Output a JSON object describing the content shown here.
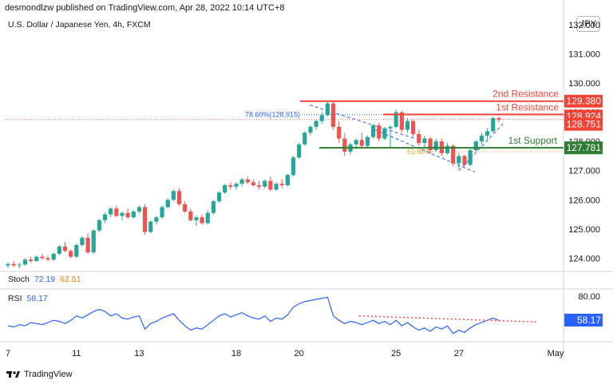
{
  "header": {
    "published": "desmondlzw published on TradingView.com, Apr 28, 2022 10:14 UTC+8",
    "symbol": "U.S. Dollar / Japanese Yen, 4h, FXCM",
    "currency": "JPY"
  },
  "levels": {
    "second_resistance": {
      "label": "2nd Resistance",
      "value": "129.380",
      "color": "#f44336"
    },
    "first_resistance": {
      "label": "1st Resistance",
      "value": "128.924",
      "color": "#f44336"
    },
    "current_price": {
      "value": "128.751",
      "color": "#f44336"
    },
    "first_support": {
      "label": "1st Support",
      "value": "127.781",
      "color": "#2e7d32"
    },
    "fib_label": "78.60%(128.915)",
    "fib_label_2": "61.80%"
  },
  "indicators": {
    "stoch": {
      "label": "Stoch",
      "k": "72.19",
      "d": "62.51"
    },
    "rsi": {
      "label": "RSI",
      "value": "58.17"
    }
  },
  "brand": "TradingView",
  "chart_data": {
    "type": "candlestick",
    "ylim": [
      123.6,
      132.3
    ],
    "yticks": [
      "132.000",
      "131.000",
      "130.000",
      "129.000",
      "128.000",
      "127.000",
      "126.000",
      "125.000",
      "124.000"
    ],
    "xticks": [
      "7",
      "11",
      "13",
      "18",
      "20",
      "25",
      "27",
      "May"
    ],
    "rsi_yticks": [
      "80.00"
    ],
    "candles": [
      [
        123.75,
        123.85,
        123.65,
        123.8
      ],
      [
        123.8,
        123.9,
        123.7,
        123.75
      ],
      [
        123.75,
        123.85,
        123.65,
        123.78
      ],
      [
        123.78,
        124.0,
        123.75,
        123.95
      ],
      [
        123.95,
        124.05,
        123.85,
        123.9
      ],
      [
        123.9,
        124.1,
        123.88,
        124.05
      ],
      [
        124.05,
        124.15,
        123.95,
        124.0
      ],
      [
        124.0,
        124.1,
        123.9,
        123.95
      ],
      [
        123.95,
        124.2,
        123.9,
        124.15
      ],
      [
        124.15,
        124.45,
        124.1,
        124.4
      ],
      [
        124.4,
        124.55,
        124.2,
        124.25
      ],
      [
        124.25,
        124.3,
        124.0,
        124.05
      ],
      [
        124.05,
        124.5,
        124.0,
        124.45
      ],
      [
        124.45,
        124.75,
        124.4,
        124.7
      ],
      [
        124.7,
        124.85,
        124.15,
        124.2
      ],
      [
        124.2,
        125.0,
        124.15,
        124.95
      ],
      [
        124.95,
        125.35,
        124.9,
        125.3
      ],
      [
        125.3,
        125.55,
        125.2,
        125.5
      ],
      [
        125.5,
        125.75,
        125.4,
        125.7
      ],
      [
        125.7,
        125.8,
        125.4,
        125.45
      ],
      [
        125.45,
        125.6,
        125.3,
        125.55
      ],
      [
        125.55,
        125.7,
        125.35,
        125.4
      ],
      [
        125.4,
        125.65,
        125.35,
        125.6
      ],
      [
        125.6,
        125.8,
        125.55,
        125.75
      ],
      [
        125.75,
        125.85,
        124.8,
        124.9
      ],
      [
        124.9,
        125.3,
        124.85,
        125.25
      ],
      [
        125.25,
        125.45,
        125.15,
        125.4
      ],
      [
        125.4,
        125.8,
        125.35,
        125.75
      ],
      [
        125.75,
        126.05,
        125.7,
        126.0
      ],
      [
        126.0,
        126.35,
        125.95,
        126.3
      ],
      [
        126.3,
        126.4,
        125.8,
        125.85
      ],
      [
        125.85,
        125.95,
        125.55,
        125.6
      ],
      [
        125.6,
        125.7,
        125.25,
        125.3
      ],
      [
        125.3,
        125.45,
        125.1,
        125.4
      ],
      [
        125.4,
        125.5,
        125.15,
        125.2
      ],
      [
        125.2,
        125.65,
        125.15,
        125.55
      ],
      [
        125.55,
        126.0,
        125.5,
        125.95
      ],
      [
        125.95,
        126.3,
        125.9,
        126.25
      ],
      [
        126.25,
        126.55,
        126.2,
        126.5
      ],
      [
        126.5,
        126.6,
        126.35,
        126.45
      ],
      [
        126.45,
        126.6,
        126.35,
        126.55
      ],
      [
        126.55,
        126.75,
        126.45,
        126.7
      ],
      [
        126.7,
        126.8,
        126.55,
        126.6
      ],
      [
        126.6,
        126.7,
        126.45,
        126.5
      ],
      [
        126.5,
        126.65,
        126.35,
        126.45
      ],
      [
        126.45,
        126.7,
        126.4,
        126.65
      ],
      [
        126.65,
        126.8,
        126.3,
        126.35
      ],
      [
        126.35,
        126.6,
        126.3,
        126.55
      ],
      [
        126.55,
        126.7,
        126.4,
        126.5
      ],
      [
        126.5,
        126.9,
        126.45,
        126.85
      ],
      [
        126.85,
        127.5,
        126.8,
        127.45
      ],
      [
        127.45,
        127.95,
        127.4,
        127.9
      ],
      [
        127.9,
        128.35,
        127.85,
        128.3
      ],
      [
        128.3,
        128.55,
        128.2,
        128.5
      ],
      [
        128.5,
        128.75,
        128.4,
        128.7
      ],
      [
        128.7,
        129.0,
        128.6,
        128.9
      ],
      [
        128.9,
        129.4,
        128.85,
        129.3
      ],
      [
        129.3,
        129.35,
        128.4,
        128.5
      ],
      [
        128.5,
        128.7,
        127.95,
        128.1
      ],
      [
        128.1,
        128.3,
        127.5,
        127.65
      ],
      [
        127.65,
        127.95,
        127.55,
        127.9
      ],
      [
        127.9,
        128.1,
        127.75,
        128.05
      ],
      [
        128.05,
        128.3,
        127.75,
        127.85
      ],
      [
        127.85,
        128.2,
        127.8,
        128.15
      ],
      [
        128.15,
        128.6,
        128.1,
        128.55
      ],
      [
        128.55,
        128.65,
        128.0,
        128.1
      ],
      [
        128.1,
        128.5,
        128.05,
        128.45
      ],
      [
        128.45,
        128.55,
        127.8,
        128.5
      ],
      [
        128.5,
        129.1,
        128.45,
        129.0
      ],
      [
        129.0,
        129.05,
        128.3,
        128.4
      ],
      [
        128.4,
        128.8,
        128.3,
        128.7
      ],
      [
        128.7,
        128.75,
        128.15,
        128.25
      ],
      [
        128.25,
        128.4,
        127.85,
        127.95
      ],
      [
        127.95,
        128.2,
        127.8,
        128.1
      ],
      [
        128.1,
        128.15,
        127.6,
        127.7
      ],
      [
        127.7,
        128.1,
        127.65,
        128.0
      ],
      [
        128.0,
        128.1,
        127.5,
        127.6
      ],
      [
        127.6,
        127.95,
        127.55,
        127.85
      ],
      [
        127.85,
        127.9,
        127.15,
        127.25
      ],
      [
        127.25,
        127.6,
        127.05,
        127.5
      ],
      [
        127.5,
        127.55,
        127.15,
        127.2
      ],
      [
        127.2,
        127.75,
        127.15,
        127.7
      ],
      [
        127.7,
        128.05,
        127.65,
        128.0
      ],
      [
        128.0,
        128.3,
        127.9,
        128.2
      ],
      [
        128.2,
        128.45,
        128.05,
        128.35
      ],
      [
        128.35,
        128.85,
        128.3,
        128.8
      ],
      [
        128.8,
        128.85,
        128.65,
        128.75
      ]
    ],
    "rsi": [
      53,
      52,
      54,
      53,
      56,
      55,
      54,
      56,
      58,
      57,
      55,
      58,
      62,
      60,
      63,
      66,
      68,
      66,
      62,
      64,
      60,
      59,
      61,
      62,
      50,
      55,
      57,
      60,
      62,
      64,
      58,
      53,
      49,
      51,
      50,
      54,
      58,
      62,
      64,
      61,
      63,
      65,
      62,
      60,
      59,
      62,
      57,
      60,
      59,
      63,
      70,
      73,
      75,
      76,
      77,
      78,
      79,
      62,
      58,
      55,
      57,
      56,
      54,
      56,
      58,
      55,
      57,
      54,
      58,
      53,
      56,
      52,
      49,
      51,
      48,
      52,
      50,
      53,
      46,
      49,
      47,
      51,
      54,
      56,
      58,
      60,
      58
    ]
  }
}
